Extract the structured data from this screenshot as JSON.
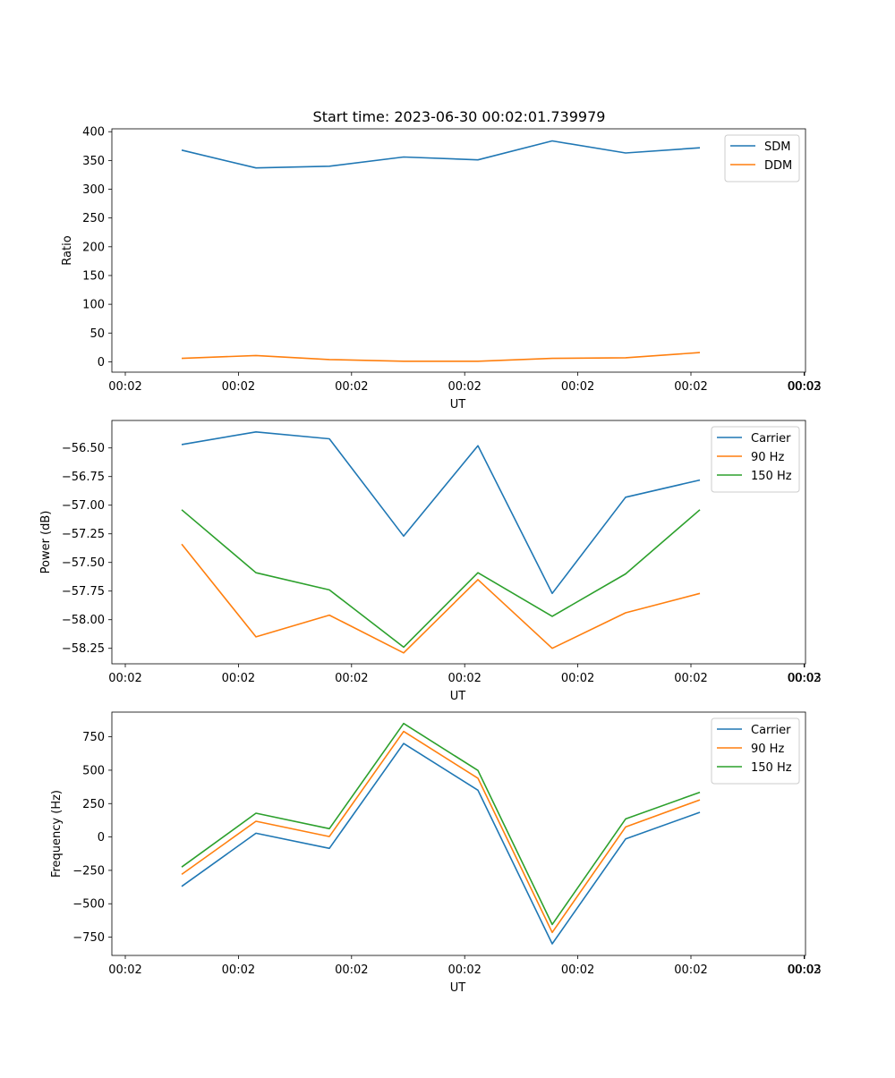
{
  "figure": {
    "title": "Start time: 2023-06-30 00:02:01.739979"
  },
  "chart_data": [
    {
      "type": "line",
      "title": "Start time: 2023-06-30 00:02:01.739979",
      "xlabel": "UT",
      "ylabel": "Ratio",
      "x_ticks": [
        "00:02",
        "00:02",
        "00:02",
        "00:02",
        "00:02",
        "00:02",
        "00:02",
        "00:03"
      ],
      "y_ticks": [
        0,
        50,
        100,
        150,
        200,
        250,
        300,
        350,
        400
      ],
      "ylim": [
        -18,
        405
      ],
      "legend": "top-right",
      "series": [
        {
          "name": "SDM",
          "color": "#1f77b4",
          "values": [
            368,
            337,
            340,
            356,
            351,
            384,
            363,
            372
          ]
        },
        {
          "name": "DDM",
          "color": "#ff7f0e",
          "values": [
            6,
            11,
            4,
            1,
            1,
            6,
            7,
            16
          ]
        }
      ]
    },
    {
      "type": "line",
      "xlabel": "UT",
      "ylabel": "Power (dB)",
      "x_ticks": [
        "00:02",
        "00:02",
        "00:02",
        "00:02",
        "00:02",
        "00:02",
        "00:02",
        "00:03"
      ],
      "y_ticks": [
        "−58.25",
        "−58.00",
        "−57.75",
        "−57.50",
        "−57.25",
        "−57.00",
        "−56.75",
        "−56.50"
      ],
      "ylim": [
        -58.385,
        -56.26
      ],
      "legend": "top-right",
      "series": [
        {
          "name": "Carrier",
          "color": "#1f77b4",
          "values": [
            -56.47,
            -56.36,
            -56.42,
            -57.27,
            -56.48,
            -57.77,
            -56.93,
            -56.78
          ]
        },
        {
          "name": "90 Hz",
          "color": "#ff7f0e",
          "values": [
            -57.34,
            -58.15,
            -57.96,
            -58.29,
            -57.65,
            -58.25,
            -57.94,
            -57.77
          ]
        },
        {
          "name": "150 Hz",
          "color": "#2ca02c",
          "values": [
            -57.04,
            -57.59,
            -57.74,
            -58.24,
            -57.59,
            -57.97,
            -57.6,
            -57.04
          ]
        }
      ]
    },
    {
      "type": "line",
      "xlabel": "UT",
      "ylabel": "Frequency (Hz)",
      "x_ticks": [
        "00:02",
        "00:02",
        "00:02",
        "00:02",
        "00:02",
        "00:02",
        "00:02",
        "00:03"
      ],
      "y_ticks": [
        "−750",
        "−500",
        "−250",
        "0",
        "250",
        "500",
        "750"
      ],
      "ylim": [
        -887,
        935
      ],
      "legend": "top-right",
      "series": [
        {
          "name": "Carrier",
          "color": "#1f77b4",
          "values": [
            -370,
            28,
            -85,
            700,
            350,
            -800,
            -15,
            185
          ]
        },
        {
          "name": "90 Hz",
          "color": "#ff7f0e",
          "values": [
            -280,
            118,
            3,
            790,
            440,
            -715,
            75,
            278
          ]
        },
        {
          "name": "150 Hz",
          "color": "#2ca02c",
          "values": [
            -225,
            178,
            62,
            850,
            498,
            -655,
            135,
            335
          ]
        }
      ]
    }
  ]
}
